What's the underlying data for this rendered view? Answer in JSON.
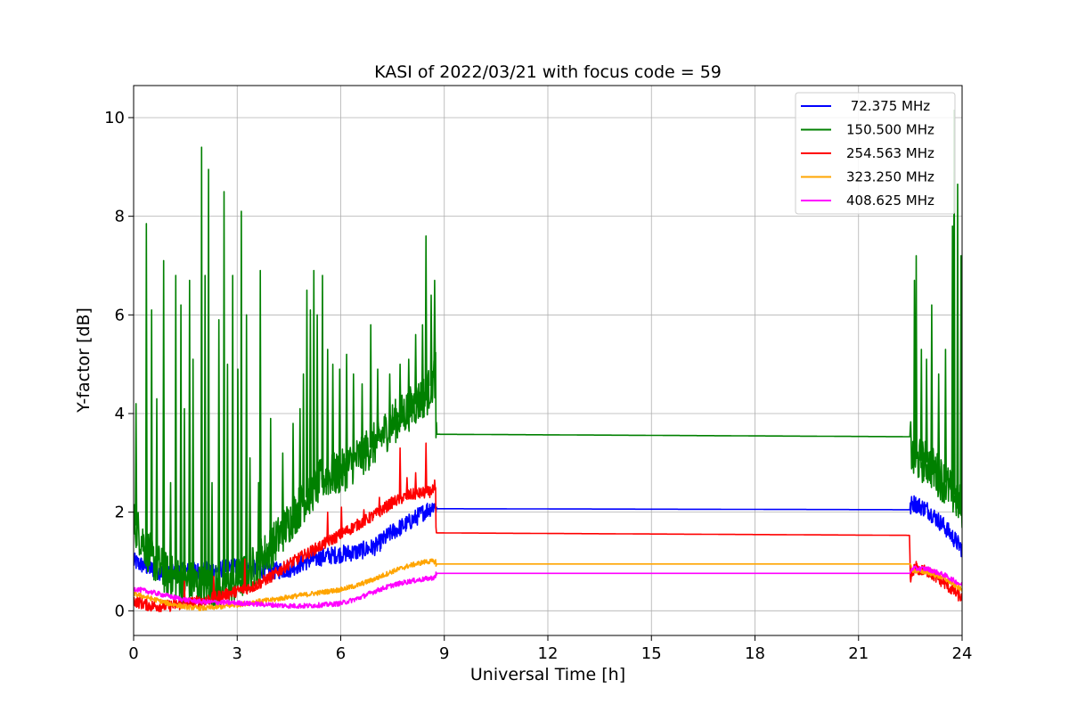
{
  "chart_data": {
    "type": "line",
    "title": "KASI of 2022/03/21 with focus code = 59",
    "xlabel": "Universal Time [h]",
    "ylabel": "Y-factor [dB]",
    "xlim": [
      0,
      24
    ],
    "ylim": [
      -0.5,
      10.65
    ],
    "xticks": [
      0,
      3,
      6,
      9,
      12,
      15,
      18,
      21,
      24
    ],
    "yticks": [
      0,
      2,
      4,
      6,
      8,
      10
    ],
    "grid": true,
    "legend_position": "top-right",
    "series": [
      {
        "name": " 72.375 MHz",
        "color": "#0000ff",
        "x": [
          0,
          0.5,
          1,
          1.5,
          2,
          2.5,
          3,
          3.5,
          4,
          4.5,
          5,
          5.5,
          6,
          6.5,
          7,
          7.5,
          8,
          8.5,
          8.75,
          8.76,
          22.5,
          22.55,
          23,
          23.5,
          24
        ],
        "values": [
          1.0,
          0.85,
          0.75,
          0.8,
          0.82,
          0.85,
          0.9,
          0.85,
          0.8,
          0.85,
          1.0,
          1.1,
          1.15,
          1.2,
          1.3,
          1.6,
          1.8,
          2.05,
          2.15,
          2.07,
          2.05,
          2.2,
          2.05,
          1.7,
          1.25
        ],
        "spread": 0.18
      },
      {
        "name": "150.500 MHz",
        "color": "#008000",
        "x": [
          0,
          0.5,
          1,
          1.5,
          2,
          2.5,
          3,
          3.5,
          4,
          4.5,
          5,
          5.5,
          6,
          6.5,
          7,
          7.5,
          8,
          8.5,
          8.75,
          8.76,
          22.5,
          22.55,
          23,
          23.5,
          24
        ],
        "values": [
          1.8,
          1.1,
          0.7,
          0.6,
          0.5,
          0.5,
          0.6,
          0.9,
          1.3,
          1.8,
          2.3,
          2.7,
          2.8,
          3.1,
          3.4,
          3.8,
          4.1,
          4.4,
          4.8,
          3.58,
          3.53,
          3.1,
          3.0,
          2.6,
          2.1
        ],
        "spread": 0.45,
        "spikes": [
          [
            0.05,
            4.2
          ],
          [
            0.35,
            7.85
          ],
          [
            0.5,
            6.1
          ],
          [
            0.65,
            4.3
          ],
          [
            0.85,
            7.1
          ],
          [
            1.05,
            2.6
          ],
          [
            1.2,
            6.8
          ],
          [
            1.35,
            6.2
          ],
          [
            1.45,
            4.1
          ],
          [
            1.6,
            6.7
          ],
          [
            1.7,
            5.1
          ],
          [
            1.95,
            9.4
          ],
          [
            2.05,
            6.8
          ],
          [
            2.15,
            8.95
          ],
          [
            2.25,
            2.6
          ],
          [
            2.45,
            5.9
          ],
          [
            2.6,
            8.5
          ],
          [
            2.7,
            5.0
          ],
          [
            2.85,
            6.8
          ],
          [
            3.0,
            4.9
          ],
          [
            3.1,
            8.1
          ],
          [
            3.25,
            6.0
          ],
          [
            3.35,
            3.1
          ],
          [
            3.6,
            2.6
          ],
          [
            3.65,
            6.9
          ],
          [
            3.95,
            3.9
          ],
          [
            4.3,
            3.2
          ],
          [
            4.6,
            3.8
          ],
          [
            4.8,
            4.1
          ],
          [
            4.9,
            4.8
          ],
          [
            5.0,
            6.5
          ],
          [
            5.1,
            6.1
          ],
          [
            5.2,
            6.9
          ],
          [
            5.3,
            6.0
          ],
          [
            5.45,
            6.8
          ],
          [
            5.6,
            5.3
          ],
          [
            5.75,
            5.0
          ],
          [
            5.95,
            4.9
          ],
          [
            6.15,
            5.2
          ],
          [
            6.35,
            4.8
          ],
          [
            6.6,
            4.6
          ],
          [
            6.85,
            5.8
          ],
          [
            7.05,
            4.9
          ],
          [
            7.4,
            4.8
          ],
          [
            7.7,
            5.0
          ],
          [
            7.95,
            5.1
          ],
          [
            8.15,
            5.6
          ],
          [
            8.35,
            5.8
          ],
          [
            8.45,
            7.6
          ],
          [
            8.6,
            6.4
          ],
          [
            8.7,
            6.7
          ],
          [
            22.6,
            6.7
          ],
          [
            22.65,
            7.2
          ],
          [
            22.8,
            5.3
          ],
          [
            22.95,
            5.1
          ],
          [
            23.1,
            6.2
          ],
          [
            23.3,
            4.8
          ],
          [
            23.5,
            5.3
          ],
          [
            23.7,
            7.8
          ],
          [
            23.75,
            10.15
          ],
          [
            23.85,
            8.65
          ],
          [
            23.95,
            7.2
          ]
        ]
      },
      {
        "name": "254.563 MHz",
        "color": "#ff0000",
        "x": [
          0,
          0.5,
          1,
          1.5,
          2,
          2.5,
          3,
          3.5,
          4,
          4.5,
          5,
          5.5,
          6,
          6.5,
          7,
          7.5,
          8,
          8.5,
          8.75,
          8.76,
          22.48,
          22.5,
          22.6,
          23,
          23.5,
          24
        ],
        "values": [
          0.2,
          0.1,
          0.1,
          0.15,
          0.2,
          0.3,
          0.4,
          0.5,
          0.7,
          0.95,
          1.15,
          1.35,
          1.55,
          1.75,
          1.95,
          2.2,
          2.35,
          2.4,
          2.45,
          1.58,
          1.53,
          0.6,
          0.85,
          0.8,
          0.55,
          0.25
        ],
        "spread": 0.12,
        "spikes": [
          [
            1.45,
            0.6
          ],
          [
            2.3,
            0.7
          ],
          [
            3.2,
            1.05
          ],
          [
            5.6,
            2.0
          ],
          [
            6.0,
            2.1
          ],
          [
            6.65,
            2.05
          ],
          [
            7.1,
            2.3
          ],
          [
            7.7,
            3.3
          ],
          [
            7.9,
            2.7
          ],
          [
            8.15,
            2.8
          ],
          [
            8.45,
            3.4
          ],
          [
            8.7,
            2.65
          ],
          [
            22.65,
            1.0
          ]
        ]
      },
      {
        "name": "323.250 MHz",
        "color": "#ffa500",
        "x": [
          0,
          0.5,
          1,
          1.5,
          2,
          2.5,
          3,
          3.5,
          4,
          4.5,
          5,
          5.5,
          6,
          6.5,
          7,
          7.5,
          8,
          8.5,
          8.75,
          8.76,
          22.5,
          22.55,
          23,
          23.5,
          24
        ],
        "values": [
          0.35,
          0.25,
          0.15,
          0.08,
          0.05,
          0.08,
          0.12,
          0.18,
          0.22,
          0.28,
          0.33,
          0.38,
          0.43,
          0.52,
          0.65,
          0.8,
          0.92,
          1.0,
          1.0,
          0.95,
          0.95,
          0.82,
          0.78,
          0.65,
          0.42
        ],
        "spread": 0.05
      },
      {
        "name": "408.625 MHz",
        "color": "#ff00ff",
        "x": [
          0,
          0.5,
          1,
          1.5,
          2,
          2.5,
          3,
          3.5,
          4,
          4.5,
          5,
          5.5,
          6,
          6.5,
          7,
          7.5,
          8,
          8.5,
          8.75,
          8.76,
          22.5,
          22.55,
          23,
          23.5,
          24
        ],
        "values": [
          0.45,
          0.38,
          0.3,
          0.22,
          0.18,
          0.17,
          0.16,
          0.14,
          0.12,
          0.1,
          0.1,
          0.12,
          0.15,
          0.25,
          0.4,
          0.52,
          0.6,
          0.65,
          0.68,
          0.76,
          0.76,
          0.86,
          0.85,
          0.72,
          0.52
        ],
        "spread": 0.05
      }
    ]
  }
}
